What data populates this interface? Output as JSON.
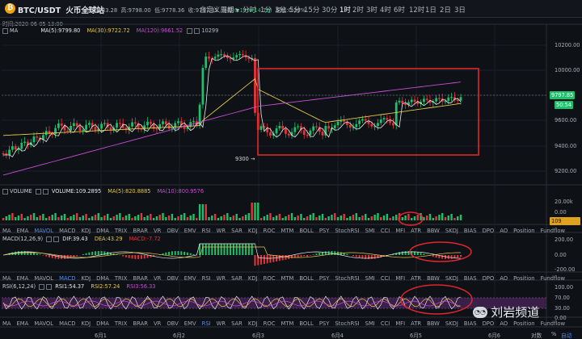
{
  "header": {
    "logo_icon": "bitcoin-logo-icon",
    "symbol": "BTC/USDT",
    "exchange": "火币全球站",
    "open_label": "开:",
    "open": "9783.28",
    "high_label": "高:",
    "high": "9798.00",
    "low_label": "低:",
    "low": "9778.36",
    "close_label": "收:",
    "close": "9797.85",
    "change_label": "涨幅:",
    "change": "0.14%(14.10)",
    "amp_label": "振幅:",
    "amp": "0.20%"
  },
  "toolbar": {
    "custom_period": "自定义周期",
    "dropdown_icon": "chevron-down-icon",
    "timeframes": [
      "分时",
      "1分",
      "3分",
      "5分",
      "15分",
      "30分",
      "1时",
      "2时",
      "3时",
      "4时",
      "6时",
      "12时",
      "1日",
      "2日",
      "3日"
    ],
    "active": "1时"
  },
  "info_line": "时间:2020-06-05 13:00",
  "price_pane": {
    "ma_label": "MA",
    "ma5": "MA(5):9799.80",
    "ma30": "MA(30):9722.72",
    "ma120": "MA(120):9661.52",
    "ma_extra": "10299",
    "axis_ticks": [
      "10200.00",
      "10000.00",
      "9800.00",
      "9600.00",
      "9400.00",
      "9200.00"
    ],
    "current_price": "9797.85",
    "countdown": "50:54",
    "low_annotation": "9300 →",
    "colors": {
      "up": "#1fbf6b",
      "down": "#e5353a",
      "ma5": "#e8e8e8",
      "ma30": "#e5c84b",
      "ma120": "#c94fd6",
      "highlight_box": "#e0262c"
    }
  },
  "volume_pane": {
    "label": "VOLUME",
    "vol": "VOLUME:109.2895",
    "ma5": "MA(5):820.8885",
    "ma10": "MA(10):800.9576",
    "axis_ticks": [
      "20.00k",
      "0.00"
    ],
    "current_tag": "109"
  },
  "macd_pane": {
    "title": "MACD(12,26,9)",
    "dif": "DIF:39.43",
    "dea": "DEA:43.29",
    "macd": "MACD:-7.72",
    "axis_ticks": [
      "200.00",
      "0.00",
      "-200.00"
    ]
  },
  "rsi_pane": {
    "title": "RSI(6,12,24)",
    "rsi1": "RSI1:54.37",
    "rsi2": "RSI2:57.24",
    "rsi3": "RSI3:56.33",
    "axis_ticks": [
      "100.00",
      "70.00",
      "30.00",
      "0.00"
    ]
  },
  "indicator_tabs": [
    "MA",
    "EMA",
    "MAVOL",
    "MACD",
    "KDJ",
    "DMA",
    "TRIX",
    "BRAR",
    "VR",
    "OBV",
    "EMV",
    "RSI",
    "WR",
    "SAR",
    "KDJ",
    "ROC",
    "MTM",
    "BOLL",
    "PSY",
    "StochRSI",
    "SMI",
    "CCI",
    "MFI",
    "ATR",
    "BBW",
    "SKDJ",
    "BIAS",
    "DPO",
    "AO",
    "Position",
    "Fundflow"
  ],
  "tabs_vol": {
    "selected": "MAVOL"
  },
  "tabs_macd": {
    "selected": "MACD"
  },
  "tabs_rsi": {
    "selected": "RSI"
  },
  "x_axis": {
    "dates": [
      "6月1",
      "6月2",
      "6月3",
      "6月4",
      "6月5",
      "6月6"
    ],
    "log_label": "对数",
    "pct_label": "%",
    "auto_label": "自动"
  },
  "watermark": {
    "text": "刘岩频道",
    "icon": "wechat-icon"
  }
}
